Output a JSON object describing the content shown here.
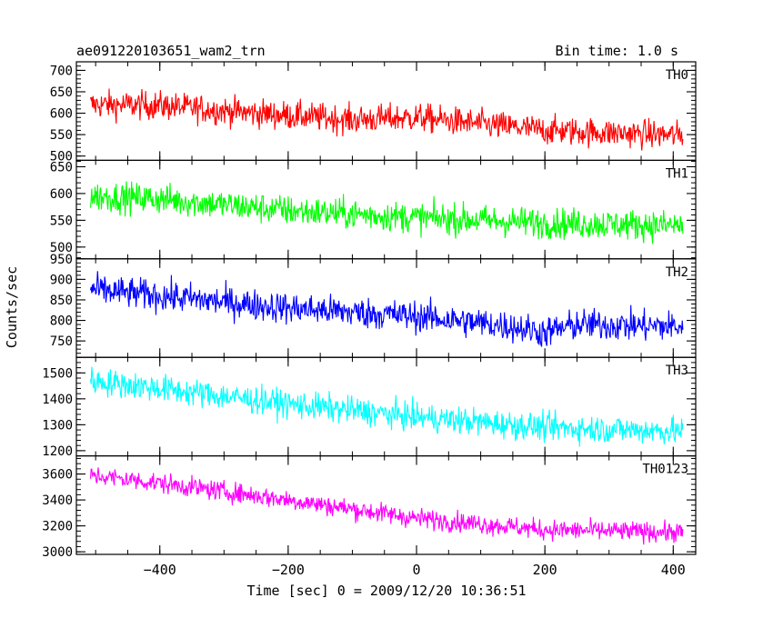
{
  "header": {
    "title": "ae091220103651_wam2_trn",
    "bin_time": "Bin time: 1.0 s"
  },
  "colors": {
    "axis": "#000000",
    "TH0": "#ff0000",
    "TH1": "#00ff00",
    "TH2": "#0000ff",
    "TH3": "#00ffff",
    "TH0123": "#ff00ff"
  },
  "chart_data": {
    "type": "line",
    "xlabel": "Time [sec] 0 = 2009/12/20 10:36:51",
    "ylabel": "Counts/sec",
    "xlim": [
      -530,
      435
    ],
    "x_start": -508,
    "x_end": 415,
    "x_step": 1,
    "x_ticks": [
      -400,
      -200,
      0,
      200,
      400
    ],
    "x_tick_labels": [
      "−400",
      "−200",
      "0",
      "200",
      "400"
    ],
    "panels": [
      {
        "name": "TH0",
        "ylim": [
          490,
          720
        ],
        "ticks": [
          500,
          550,
          600,
          650,
          700
        ],
        "trend": [
          [
            -508,
            620
          ],
          [
            -400,
            618
          ],
          [
            -250,
            600
          ],
          [
            -100,
            585
          ],
          [
            0,
            590
          ],
          [
            200,
            560
          ],
          [
            415,
            548
          ]
        ],
        "noise": 28
      },
      {
        "name": "TH1",
        "ylim": [
          478,
          662
        ],
        "ticks": [
          500,
          550,
          600,
          650
        ],
        "trend": [
          [
            -508,
            595
          ],
          [
            -400,
            590
          ],
          [
            -200,
            568
          ],
          [
            0,
            555
          ],
          [
            200,
            545
          ],
          [
            415,
            540
          ]
        ],
        "noise": 24
      },
      {
        "name": "TH2",
        "ylim": [
          710,
          950
        ],
        "ticks": [
          750,
          800,
          850,
          900,
          950
        ],
        "trend": [
          [
            -508,
            875
          ],
          [
            -400,
            860
          ],
          [
            -200,
            830
          ],
          [
            0,
            810
          ],
          [
            150,
            785
          ],
          [
            200,
            770
          ],
          [
            250,
            790
          ],
          [
            415,
            785
          ]
        ],
        "noise": 32
      },
      {
        "name": "TH3",
        "ylim": [
          1180,
          1560
        ],
        "ticks": [
          1200,
          1300,
          1400,
          1500
        ],
        "trend": [
          [
            -508,
            1470
          ],
          [
            -400,
            1440
          ],
          [
            -200,
            1380
          ],
          [
            0,
            1330
          ],
          [
            200,
            1290
          ],
          [
            415,
            1275
          ]
        ],
        "noise": 45
      },
      {
        "name": "TH0123",
        "ylim": [
          2980,
          3740
        ],
        "ticks": [
          3000,
          3200,
          3400,
          3600
        ],
        "trend": [
          [
            -508,
            3590
          ],
          [
            -400,
            3530
          ],
          [
            -200,
            3400
          ],
          [
            0,
            3260
          ],
          [
            200,
            3170
          ],
          [
            415,
            3150
          ]
        ],
        "noise": 65
      }
    ]
  }
}
